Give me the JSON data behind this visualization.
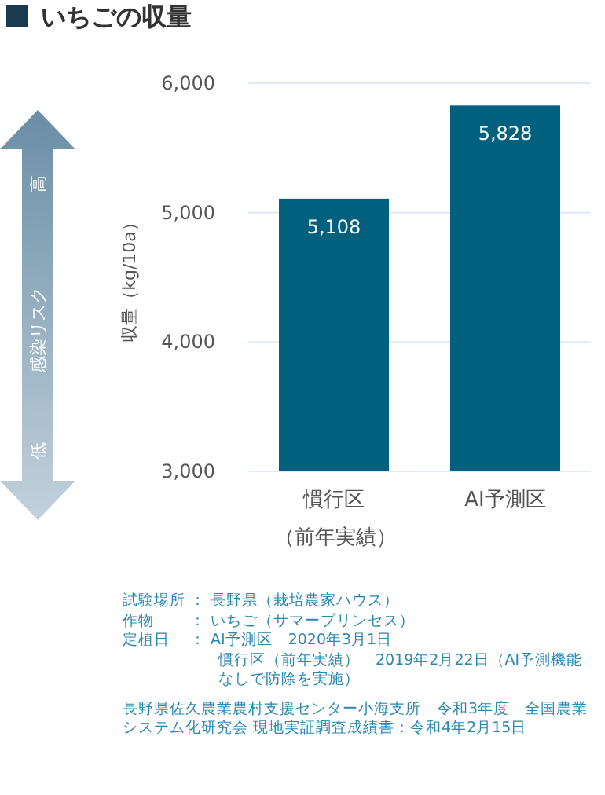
{
  "chart_data": {
    "type": "bar",
    "title": "いちごの収量",
    "ylabel": "収量（kg/10a）",
    "categories": [
      "慣行区（前年実績）",
      "AI予測区"
    ],
    "values": [
      5108,
      5828
    ],
    "color": "#00607e",
    "value_labels": [
      "5,108",
      "5,828"
    ],
    "ylim": [
      3000,
      6000
    ],
    "yticks": [
      {
        "value": 3000,
        "label": "3,000"
      },
      {
        "value": 4000,
        "label": "4,000"
      },
      {
        "value": 5000,
        "label": "5,000"
      },
      {
        "value": 6000,
        "label": "6,000"
      }
    ],
    "grid": "y",
    "annotations": [
      "高",
      "感染リスク",
      "低",
      "試験場所 ： 長野県（栽培農家ハウス）",
      "作物　　 ： いちご（サマープリンセス）",
      "定植日　 ： AI予測区　2020年3月1日",
      "慣行区（前年実績）　2019年2月22日（AI予測機能なしで防除を実施）",
      "長野県佐久農業農村支援センター小海支所　令和3年度　全国農業システム化研究会 現地実証調査成績書：令和4年2月15日"
    ]
  }
}
